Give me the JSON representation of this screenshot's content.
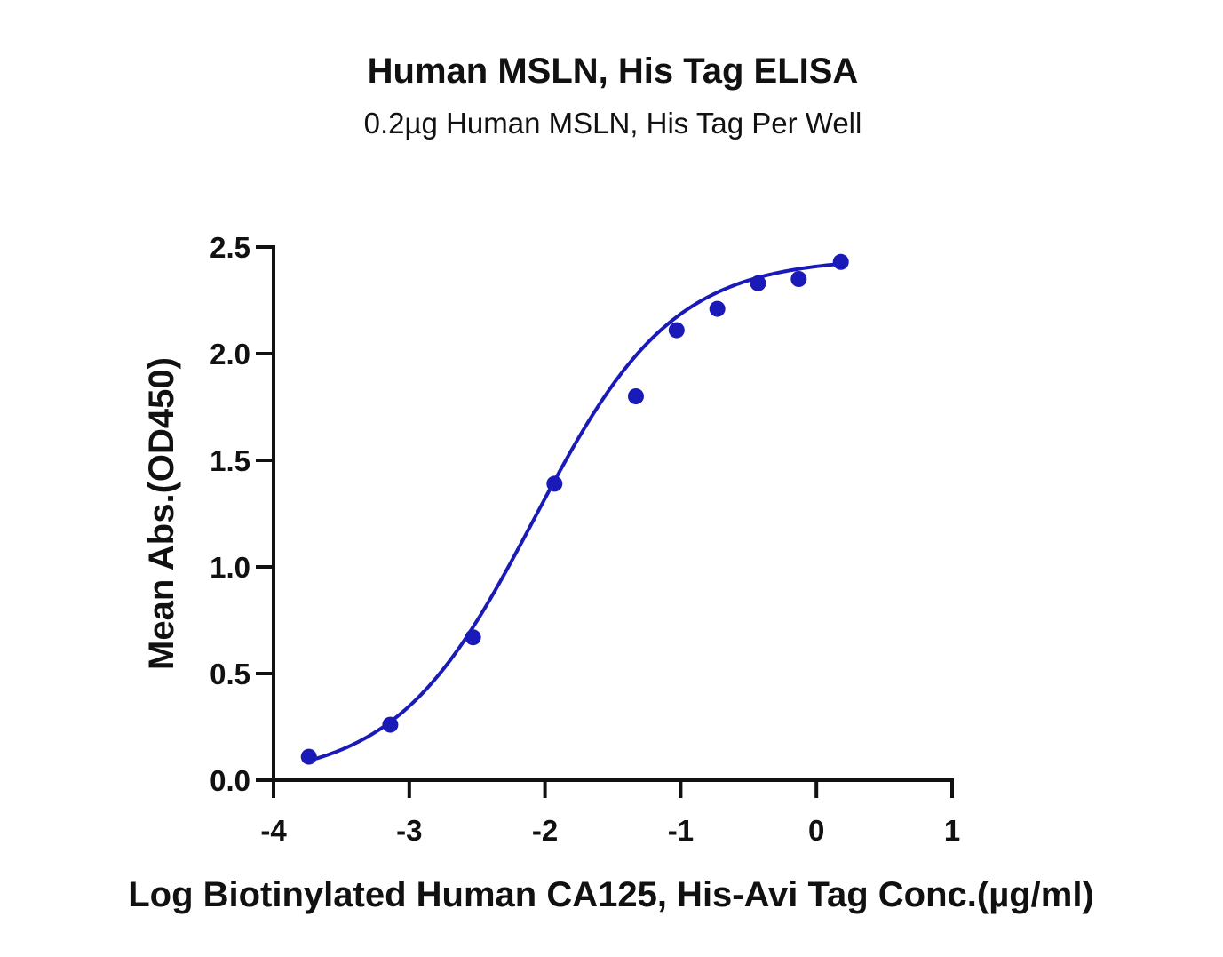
{
  "chart_data": {
    "type": "scatter",
    "title": "Human MSLN, His Tag ELISA",
    "subtitle": "0.2µg Human MSLN, His Tag Per Well",
    "xlabel": "Log Biotinylated Human CA125, His-Avi Tag Conc.(µg/ml)",
    "ylabel": "Mean Abs.(OD450)",
    "xlim": [
      -4,
      1
    ],
    "ylim": [
      0,
      2.5
    ],
    "x_ticks": [
      -4,
      -3,
      -2,
      -1,
      0,
      1
    ],
    "x_tick_labels": [
      "-4",
      "-3",
      "-2",
      "-1",
      "0",
      "1"
    ],
    "y_ticks": [
      0,
      0.5,
      1,
      1.5,
      2,
      2.5
    ],
    "y_tick_labels": [
      "0.0",
      "0.5",
      "1.0",
      "1.5",
      "2.0",
      "2.5"
    ],
    "grid": false,
    "legend": "none",
    "series": [
      {
        "color": "#1a1ab8",
        "marker": "circle",
        "x": [
          -3.74,
          -3.14,
          -2.53,
          -1.93,
          -1.33,
          -1.03,
          -0.73,
          -0.43,
          -0.13,
          0.18
        ],
        "y": [
          0.11,
          0.26,
          0.67,
          1.39,
          1.8,
          2.11,
          2.21,
          2.33,
          2.35,
          2.43
        ],
        "fit": {
          "type": "sigmoidal-4pl",
          "bottom": 0.0,
          "top": 2.45,
          "log_ec50": -2.08,
          "hill_slope": 0.85
        }
      }
    ]
  }
}
